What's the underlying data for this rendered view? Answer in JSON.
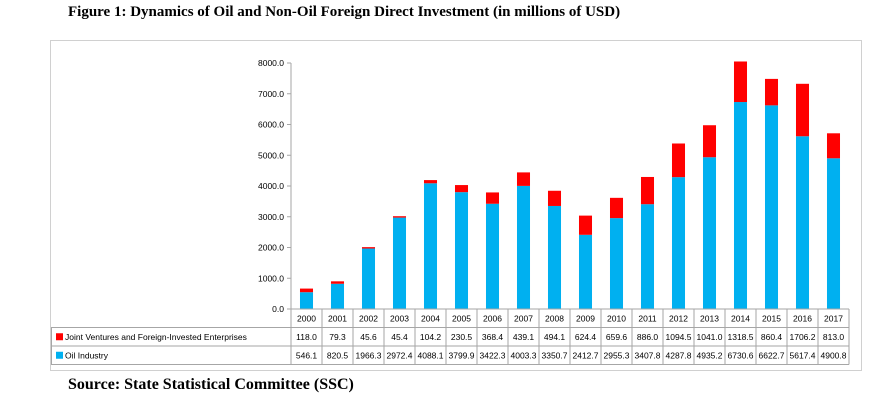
{
  "title": "Figure 1: Dynamics of Oil and Non-Oil Foreign Direct Investment (in millions of USD)",
  "source": "Source: State Statistical Committee (SSC)",
  "chart_data": {
    "type": "bar",
    "stacked": true,
    "categories": [
      "2000",
      "2001",
      "2002",
      "2003",
      "2004",
      "2005",
      "2006",
      "2007",
      "2008",
      "2009",
      "2010",
      "2011",
      "2012",
      "2013",
      "2014",
      "2015",
      "2016",
      "2017"
    ],
    "ylim": [
      0,
      8000
    ],
    "yticks": [
      "0.0",
      "1000.0",
      "2000.0",
      "3000.0",
      "4000.0",
      "5000.0",
      "6000.0",
      "7000.0",
      "8000.0"
    ],
    "grid": false,
    "legend_placement": "data table",
    "series": [
      {
        "name": "Oil Industry",
        "color": "#00b0f0",
        "values": [
          546.1,
          820.5,
          1966.3,
          2972.4,
          4088.1,
          3799.9,
          3422.3,
          4003.3,
          3350.7,
          2412.7,
          2955.3,
          3407.8,
          4287.8,
          4935.2,
          6730.6,
          6622.7,
          5617.4,
          4900.8
        ],
        "labels": [
          "546.1",
          "820.5",
          "1966.3",
          "2972.4",
          "4088.1",
          "3799.9",
          "3422.3",
          "4003.3",
          "3350.7",
          "2412.7",
          "2955.3",
          "3407.8",
          "4287.8",
          "4935.2",
          "6730.6",
          "6622.7",
          "5617.4",
          "4900.8"
        ]
      },
      {
        "name": "Joint Ventures and Foreign-Invested Enterprises",
        "color": "#ff0000",
        "values": [
          118.0,
          79.3,
          45.6,
          45.4,
          104.2,
          230.5,
          368.4,
          439.1,
          494.1,
          624.4,
          659.6,
          886.0,
          1094.5,
          1041.0,
          1318.5,
          860.4,
          1706.2,
          813.0
        ],
        "labels": [
          "118.0",
          "79.3",
          "45.6",
          "45.4",
          "104.2",
          "230.5",
          "368.4",
          "439.1",
          "494.1",
          "624.4",
          "659.6",
          "886.0",
          "1094.5",
          "1041.0",
          "1318.5",
          "860.4",
          "1706.2",
          "813.0"
        ]
      }
    ]
  }
}
